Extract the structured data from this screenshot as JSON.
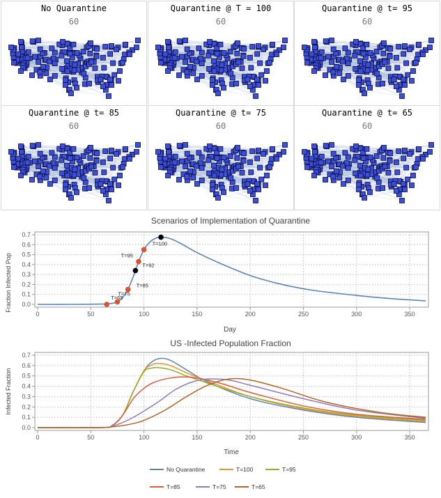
{
  "panels": [
    {
      "title": "No Quarantine",
      "subtitle": "60"
    },
    {
      "title": "Quarantine @ T = 100",
      "subtitle": "60"
    },
    {
      "title": "Quarantine @ t= 95",
      "subtitle": "60"
    },
    {
      "title": "Quarantine @ t= 85",
      "subtitle": "60"
    },
    {
      "title": "Quarantine @ t= 75",
      "subtitle": "60"
    },
    {
      "title": "Quarantine @ t= 65",
      "subtitle": "60"
    }
  ],
  "colors": {
    "node_fill": "#3b4fd9",
    "node_stroke": "#0a0a3a",
    "edge": "#9fb3d9",
    "curve": "#5b82b7",
    "marker_red": "#d9542e",
    "marker_black": "#000000",
    "no_quarantine": "#5b82b7",
    "t100": "#e8962a",
    "t95": "#8fb028",
    "t85": "#e15a3c",
    "t75": "#8f7ac0",
    "t65": "#b5641f"
  },
  "chart_data": [
    {
      "type": "line",
      "title": "Scenarios of Implementation of Quarantine",
      "xlabel": "Day",
      "ylabel": "Fraction Infected Pop",
      "xlim": [
        0,
        365
      ],
      "ylim": [
        0,
        0.7
      ],
      "xticks": [
        0,
        50,
        100,
        150,
        200,
        250,
        300,
        350
      ],
      "yticks": [
        0.0,
        0.1,
        0.2,
        0.3,
        0.4,
        0.5,
        0.6,
        0.7
      ],
      "grid": true,
      "series": [
        {
          "x": [
            0,
            30,
            60,
            66,
            70,
            75,
            80,
            85,
            90,
            92,
            95,
            100,
            105,
            110,
            116,
            125,
            135,
            150,
            170,
            200,
            230,
            260,
            300,
            330,
            365
          ],
          "y": [
            0.0,
            0.0,
            0.003,
            0.006,
            0.01,
            0.025,
            0.07,
            0.15,
            0.28,
            0.34,
            0.43,
            0.55,
            0.62,
            0.66,
            0.675,
            0.66,
            0.61,
            0.52,
            0.42,
            0.29,
            0.2,
            0.14,
            0.09,
            0.06,
            0.035
          ]
        }
      ],
      "markers": [
        {
          "x": 65,
          "y": 0.0,
          "label": "T=65",
          "color": "red"
        },
        {
          "x": 75,
          "y": 0.025,
          "label": "T=75",
          "color": "red"
        },
        {
          "x": 85,
          "y": 0.15,
          "label": "T=85",
          "color": "red"
        },
        {
          "x": 92,
          "y": 0.34,
          "label": "T=92",
          "color": "black"
        },
        {
          "x": 95,
          "y": 0.43,
          "label": "T=95",
          "color": "red"
        },
        {
          "x": 100,
          "y": 0.55,
          "label": "T=100",
          "color": "red"
        },
        {
          "x": 116,
          "y": 0.675,
          "label": "",
          "color": "black"
        }
      ]
    },
    {
      "type": "line",
      "title": "US -Infected Population Fraction",
      "xlabel": "Time",
      "ylabel": "Infected Fraction",
      "xlim": [
        0,
        365
      ],
      "ylim": [
        0,
        0.7
      ],
      "xticks": [
        0,
        50,
        100,
        150,
        200,
        250,
        300,
        350
      ],
      "yticks": [
        0.0,
        0.1,
        0.2,
        0.3,
        0.4,
        0.5,
        0.6,
        0.7
      ],
      "grid": true,
      "legend_position": "bottom",
      "series": [
        {
          "name": "No Quarantine",
          "color_key": "no_quarantine",
          "x": [
            0,
            60,
            70,
            80,
            90,
            100,
            108,
            116,
            125,
            140,
            160,
            200,
            250,
            300,
            365
          ],
          "y": [
            0,
            0.001,
            0.02,
            0.12,
            0.35,
            0.55,
            0.64,
            0.67,
            0.65,
            0.56,
            0.44,
            0.28,
            0.17,
            0.1,
            0.05
          ]
        },
        {
          "name": "T=100",
          "color_key": "t100",
          "x": [
            0,
            60,
            70,
            80,
            90,
            100,
            108,
            115,
            125,
            140,
            160,
            200,
            250,
            300,
            365
          ],
          "y": [
            0,
            0.001,
            0.02,
            0.12,
            0.35,
            0.55,
            0.61,
            0.62,
            0.6,
            0.53,
            0.45,
            0.3,
            0.18,
            0.11,
            0.06
          ]
        },
        {
          "name": "T=95",
          "color_key": "t95",
          "x": [
            0,
            60,
            70,
            80,
            90,
            100,
            107,
            114,
            125,
            140,
            160,
            200,
            250,
            300,
            365
          ],
          "y": [
            0,
            0.001,
            0.02,
            0.12,
            0.35,
            0.54,
            0.575,
            0.58,
            0.56,
            0.5,
            0.43,
            0.3,
            0.19,
            0.12,
            0.07
          ]
        },
        {
          "name": "T=85",
          "color_key": "t85",
          "x": [
            0,
            60,
            70,
            80,
            90,
            100,
            110,
            125,
            140,
            155,
            175,
            200,
            250,
            300,
            365
          ],
          "y": [
            0,
            0.001,
            0.02,
            0.12,
            0.28,
            0.38,
            0.44,
            0.48,
            0.49,
            0.47,
            0.42,
            0.34,
            0.21,
            0.13,
            0.08
          ]
        },
        {
          "name": "T=75",
          "color_key": "t75",
          "x": [
            0,
            60,
            70,
            80,
            90,
            100,
            115,
            130,
            145,
            160,
            180,
            200,
            250,
            300,
            365
          ],
          "y": [
            0,
            0.001,
            0.015,
            0.05,
            0.1,
            0.16,
            0.26,
            0.37,
            0.44,
            0.47,
            0.46,
            0.41,
            0.28,
            0.17,
            0.09
          ]
        },
        {
          "name": "T=65",
          "color_key": "t65",
          "x": [
            0,
            60,
            70,
            80,
            90,
            100,
            120,
            140,
            160,
            180,
            200,
            230,
            270,
            320,
            365
          ],
          "y": [
            0,
            0.001,
            0.008,
            0.02,
            0.04,
            0.07,
            0.17,
            0.3,
            0.41,
            0.47,
            0.46,
            0.38,
            0.25,
            0.15,
            0.1
          ]
        }
      ]
    }
  ]
}
